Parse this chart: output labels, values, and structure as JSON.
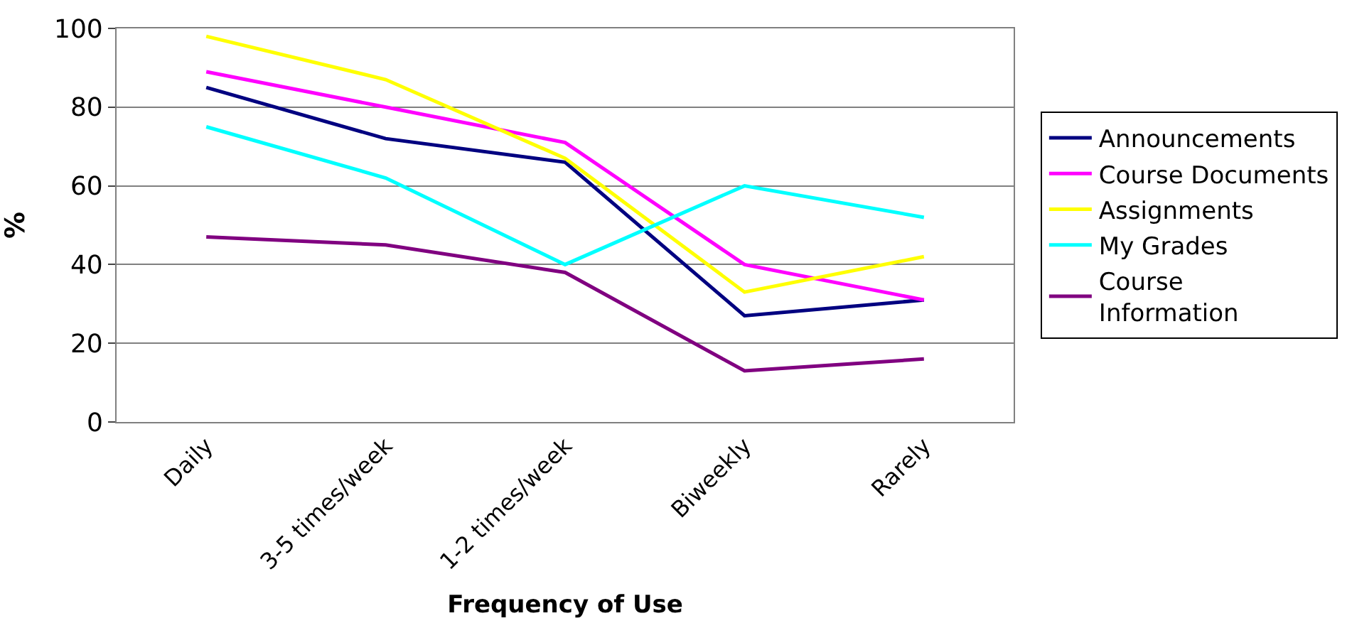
{
  "chart_data": {
    "type": "line",
    "xlabel": "Frequency of Use",
    "ylabel": "%",
    "categories": [
      "Daily",
      "3-5 times/week",
      "1-2 times/week",
      "Biweekly",
      "Rarely"
    ],
    "series": [
      {
        "name": "Announcements",
        "color": "#000080",
        "values": [
          85,
          72,
          66,
          27,
          31
        ]
      },
      {
        "name": "Course Documents",
        "color": "#ff00ff",
        "values": [
          89,
          80,
          71,
          40,
          31
        ]
      },
      {
        "name": "Assignments",
        "color": "#ffff00",
        "values": [
          98,
          87,
          67,
          33,
          42
        ]
      },
      {
        "name": "My Grades",
        "color": "#00ffff",
        "values": [
          75,
          62,
          40,
          60,
          52
        ]
      },
      {
        "name": "Course Information",
        "color": "#800080",
        "values": [
          47,
          45,
          38,
          13,
          16
        ]
      }
    ],
    "ylim": [
      0,
      100
    ],
    "yticks": [
      0,
      20,
      40,
      60,
      80,
      100
    ],
    "grid": "y",
    "legend": "right",
    "marker": "none",
    "line_style": "solid"
  }
}
